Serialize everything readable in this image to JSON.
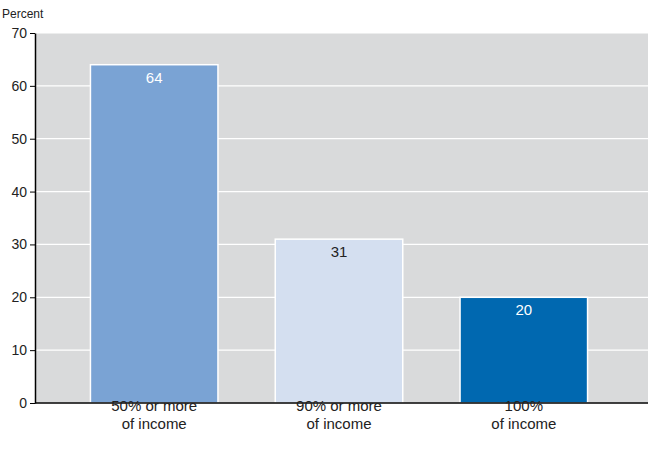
{
  "chart_data": {
    "type": "bar",
    "ylabel": "Percent",
    "categories": [
      "50% or more\nof income",
      "90% or more\nof income",
      "100%\nof income"
    ],
    "values": [
      64,
      31,
      20
    ],
    "colors": [
      "#7aa3d4",
      "#d4dff0",
      "#0068b0"
    ],
    "ylim": [
      0,
      70
    ],
    "yticks": [
      0,
      10,
      20,
      30,
      40,
      50,
      60,
      70
    ],
    "grid": true,
    "data_labels": true
  }
}
